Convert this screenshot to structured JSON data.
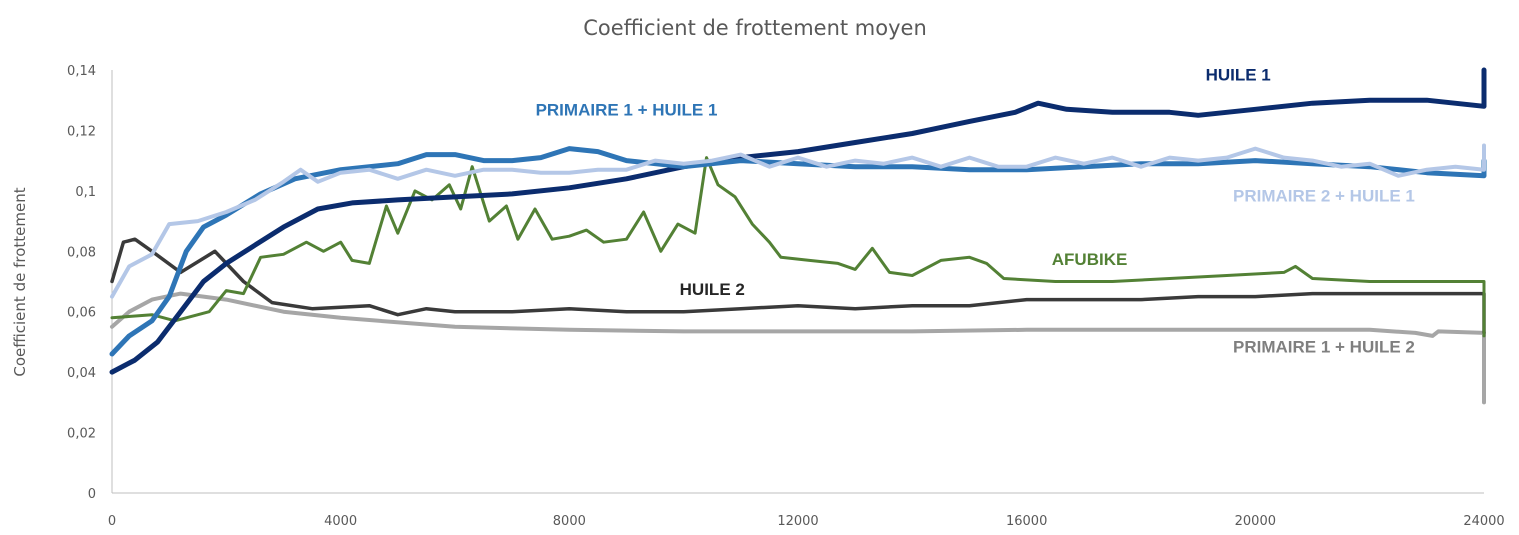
{
  "chart_data": {
    "type": "line",
    "title": "Coefficient de frottement moyen",
    "xlabel": "",
    "ylabel": "Coefficient de frottement",
    "xlim": [
      0,
      24000
    ],
    "ylim": [
      0,
      0.14
    ],
    "x_ticks": [
      "0",
      "4000",
      "8000",
      "12000",
      "16000",
      "20000",
      "24000"
    ],
    "y_ticks": [
      "0",
      "0,02",
      "0,04",
      "0,06",
      "0,08",
      "0,1",
      "0,12",
      "0,14"
    ],
    "grid": false,
    "legend": "none (series labelled directly on the plot)",
    "series": [
      {
        "name": "PRIMAIRE 1 + HUILE 2",
        "color": "#a6a6a6",
        "points": [
          [
            0,
            0.055
          ],
          [
            300,
            0.06
          ],
          [
            700,
            0.064
          ],
          [
            1200,
            0.066
          ],
          [
            2000,
            0.064
          ],
          [
            3000,
            0.06
          ],
          [
            4000,
            0.058
          ],
          [
            6000,
            0.055
          ],
          [
            8000,
            0.054
          ],
          [
            10000,
            0.0535
          ],
          [
            12000,
            0.0535
          ],
          [
            14000,
            0.0535
          ],
          [
            16000,
            0.054
          ],
          [
            18000,
            0.054
          ],
          [
            20000,
            0.054
          ],
          [
            22000,
            0.054
          ],
          [
            22800,
            0.053
          ],
          [
            23100,
            0.052
          ],
          [
            23200,
            0.0535
          ],
          [
            24000,
            0.053
          ],
          [
            24000,
            0.03
          ]
        ]
      },
      {
        "name": "HUILE 2",
        "color": "#3a3a3a",
        "points": [
          [
            0,
            0.07
          ],
          [
            200,
            0.083
          ],
          [
            400,
            0.084
          ],
          [
            700,
            0.08
          ],
          [
            1200,
            0.073
          ],
          [
            1800,
            0.08
          ],
          [
            2300,
            0.07
          ],
          [
            2800,
            0.063
          ],
          [
            3500,
            0.061
          ],
          [
            4500,
            0.062
          ],
          [
            5000,
            0.059
          ],
          [
            5500,
            0.061
          ],
          [
            6000,
            0.06
          ],
          [
            7000,
            0.06
          ],
          [
            8000,
            0.061
          ],
          [
            9000,
            0.06
          ],
          [
            10000,
            0.06
          ],
          [
            11000,
            0.061
          ],
          [
            12000,
            0.062
          ],
          [
            13000,
            0.061
          ],
          [
            14000,
            0.062
          ],
          [
            15000,
            0.062
          ],
          [
            16000,
            0.064
          ],
          [
            17000,
            0.064
          ],
          [
            18000,
            0.064
          ],
          [
            19000,
            0.065
          ],
          [
            20000,
            0.065
          ],
          [
            21000,
            0.066
          ],
          [
            22000,
            0.066
          ],
          [
            23000,
            0.066
          ],
          [
            24000,
            0.066
          ],
          [
            24000,
            0.053
          ]
        ]
      },
      {
        "name": "AFUBIKE",
        "color": "#538135",
        "points": [
          [
            0,
            0.058
          ],
          [
            700,
            0.059
          ],
          [
            1100,
            0.057
          ],
          [
            1700,
            0.06
          ],
          [
            2000,
            0.067
          ],
          [
            2300,
            0.066
          ],
          [
            2600,
            0.078
          ],
          [
            3000,
            0.079
          ],
          [
            3400,
            0.083
          ],
          [
            3700,
            0.08
          ],
          [
            4000,
            0.083
          ],
          [
            4200,
            0.077
          ],
          [
            4500,
            0.076
          ],
          [
            4800,
            0.095
          ],
          [
            5000,
            0.086
          ],
          [
            5300,
            0.1
          ],
          [
            5600,
            0.097
          ],
          [
            5900,
            0.102
          ],
          [
            6100,
            0.094
          ],
          [
            6300,
            0.108
          ],
          [
            6600,
            0.09
          ],
          [
            6900,
            0.095
          ],
          [
            7100,
            0.084
          ],
          [
            7400,
            0.094
          ],
          [
            7700,
            0.084
          ],
          [
            8000,
            0.085
          ],
          [
            8300,
            0.087
          ],
          [
            8600,
            0.083
          ],
          [
            9000,
            0.084
          ],
          [
            9300,
            0.093
          ],
          [
            9600,
            0.08
          ],
          [
            9900,
            0.089
          ],
          [
            10200,
            0.086
          ],
          [
            10400,
            0.111
          ],
          [
            10600,
            0.102
          ],
          [
            10900,
            0.098
          ],
          [
            11200,
            0.089
          ],
          [
            11500,
            0.083
          ],
          [
            11700,
            0.078
          ],
          [
            12200,
            0.077
          ],
          [
            12700,
            0.076
          ],
          [
            13000,
            0.074
          ],
          [
            13300,
            0.081
          ],
          [
            13600,
            0.073
          ],
          [
            14000,
            0.072
          ],
          [
            14500,
            0.077
          ],
          [
            15000,
            0.078
          ],
          [
            15300,
            0.076
          ],
          [
            15600,
            0.071
          ],
          [
            16500,
            0.07
          ],
          [
            17500,
            0.07
          ],
          [
            18500,
            0.071
          ],
          [
            19500,
            0.072
          ],
          [
            20500,
            0.073
          ],
          [
            20700,
            0.075
          ],
          [
            21000,
            0.071
          ],
          [
            22000,
            0.07
          ],
          [
            23000,
            0.07
          ],
          [
            24000,
            0.07
          ],
          [
            24000,
            0.052
          ]
        ]
      },
      {
        "name": "HUILE 1",
        "color": "#0b2c6e",
        "points": [
          [
            0,
            0.04
          ],
          [
            400,
            0.044
          ],
          [
            800,
            0.05
          ],
          [
            1200,
            0.06
          ],
          [
            1600,
            0.07
          ],
          [
            2000,
            0.076
          ],
          [
            2500,
            0.082
          ],
          [
            3000,
            0.088
          ],
          [
            3600,
            0.094
          ],
          [
            4200,
            0.096
          ],
          [
            5000,
            0.097
          ],
          [
            6000,
            0.098
          ],
          [
            7000,
            0.099
          ],
          [
            8000,
            0.101
          ],
          [
            9000,
            0.104
          ],
          [
            10000,
            0.108
          ],
          [
            11000,
            0.111
          ],
          [
            12000,
            0.113
          ],
          [
            13000,
            0.116
          ],
          [
            14000,
            0.119
          ],
          [
            15000,
            0.123
          ],
          [
            15800,
            0.126
          ],
          [
            16200,
            0.129
          ],
          [
            16700,
            0.127
          ],
          [
            17500,
            0.126
          ],
          [
            18500,
            0.126
          ],
          [
            19000,
            0.125
          ],
          [
            20000,
            0.127
          ],
          [
            21000,
            0.129
          ],
          [
            22000,
            0.13
          ],
          [
            23000,
            0.13
          ],
          [
            24000,
            0.128
          ],
          [
            24000,
            0.14
          ]
        ]
      },
      {
        "name": "PRIMAIRE 1 + HUILE 1",
        "color": "#2e75b6",
        "points": [
          [
            0,
            0.046
          ],
          [
            300,
            0.052
          ],
          [
            700,
            0.057
          ],
          [
            1000,
            0.065
          ],
          [
            1300,
            0.08
          ],
          [
            1600,
            0.088
          ],
          [
            2000,
            0.092
          ],
          [
            2600,
            0.099
          ],
          [
            3200,
            0.104
          ],
          [
            4000,
            0.107
          ],
          [
            5000,
            0.109
          ],
          [
            5500,
            0.112
          ],
          [
            6000,
            0.112
          ],
          [
            6500,
            0.11
          ],
          [
            7000,
            0.11
          ],
          [
            7500,
            0.111
          ],
          [
            8000,
            0.114
          ],
          [
            8500,
            0.113
          ],
          [
            9000,
            0.11
          ],
          [
            9500,
            0.109
          ],
          [
            10000,
            0.108
          ],
          [
            11000,
            0.11
          ],
          [
            12000,
            0.109
          ],
          [
            13000,
            0.108
          ],
          [
            14000,
            0.108
          ],
          [
            15000,
            0.107
          ],
          [
            16000,
            0.107
          ],
          [
            17000,
            0.108
          ],
          [
            18000,
            0.109
          ],
          [
            19000,
            0.109
          ],
          [
            20000,
            0.11
          ],
          [
            21000,
            0.109
          ],
          [
            22000,
            0.108
          ],
          [
            23000,
            0.106
          ],
          [
            24000,
            0.105
          ],
          [
            24000,
            0.11
          ]
        ]
      },
      {
        "name": "PRIMAIRE 2 + HUILE 1",
        "color": "#b4c7e7",
        "points": [
          [
            0,
            0.065
          ],
          [
            300,
            0.075
          ],
          [
            700,
            0.079
          ],
          [
            1000,
            0.089
          ],
          [
            1500,
            0.09
          ],
          [
            2000,
            0.093
          ],
          [
            2500,
            0.097
          ],
          [
            3000,
            0.103
          ],
          [
            3300,
            0.107
          ],
          [
            3600,
            0.103
          ],
          [
            4000,
            0.106
          ],
          [
            4500,
            0.107
          ],
          [
            5000,
            0.104
          ],
          [
            5500,
            0.107
          ],
          [
            6000,
            0.105
          ],
          [
            6500,
            0.107
          ],
          [
            7000,
            0.107
          ],
          [
            7500,
            0.106
          ],
          [
            8000,
            0.106
          ],
          [
            8500,
            0.107
          ],
          [
            9000,
            0.107
          ],
          [
            9500,
            0.11
          ],
          [
            10000,
            0.109
          ],
          [
            10500,
            0.11
          ],
          [
            11000,
            0.112
          ],
          [
            11500,
            0.108
          ],
          [
            12000,
            0.111
          ],
          [
            12500,
            0.108
          ],
          [
            13000,
            0.11
          ],
          [
            13500,
            0.109
          ],
          [
            14000,
            0.111
          ],
          [
            14500,
            0.108
          ],
          [
            15000,
            0.111
          ],
          [
            15500,
            0.108
          ],
          [
            16000,
            0.108
          ],
          [
            16500,
            0.111
          ],
          [
            17000,
            0.109
          ],
          [
            17500,
            0.111
          ],
          [
            18000,
            0.108
          ],
          [
            18500,
            0.111
          ],
          [
            19000,
            0.11
          ],
          [
            19500,
            0.111
          ],
          [
            20000,
            0.114
          ],
          [
            20500,
            0.111
          ],
          [
            21000,
            0.11
          ],
          [
            21500,
            0.108
          ],
          [
            22000,
            0.109
          ],
          [
            22500,
            0.105
          ],
          [
            23000,
            0.107
          ],
          [
            23500,
            0.108
          ],
          [
            24000,
            0.107
          ],
          [
            24000,
            0.115
          ]
        ]
      }
    ],
    "labels": [
      {
        "text": "HUILE 1",
        "series": "HUILE 1",
        "x": 19700,
        "y": 0.1365
      },
      {
        "text": "PRIMAIRE 1 + HUILE 1",
        "series": "PRIMAIRE 1 + HUILE 1",
        "x": 9000,
        "y": 0.125
      },
      {
        "text": "PRIMAIRE 2 + HUILE 1",
        "series": "PRIMAIRE 2 + HUILE 1",
        "x": 21200,
        "y": 0.0965
      },
      {
        "text": "AFUBIKE",
        "series": "AFUBIKE",
        "x": 17100,
        "y": 0.0755
      },
      {
        "text": "HUILE 2",
        "series": "HUILE 2",
        "x": 10500,
        "y": 0.0655
      },
      {
        "text": "PRIMAIRE 1 + HUILE 2",
        "series": "PRIMAIRE 1 + HUILE 2",
        "x": 21200,
        "y": 0.0465
      }
    ]
  }
}
